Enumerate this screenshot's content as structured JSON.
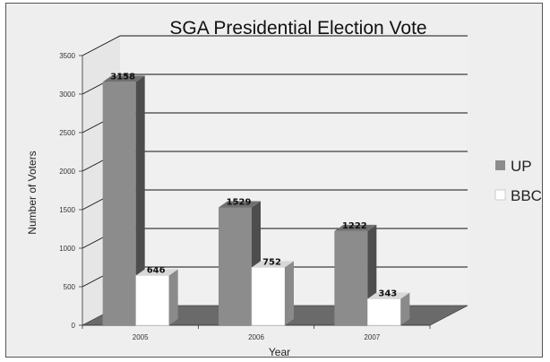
{
  "chart_data": {
    "type": "bar",
    "title": "SGA Presidential Election Vote",
    "xlabel": "Year",
    "ylabel": "Number of Voters",
    "categories": [
      "2005",
      "2006",
      "2007"
    ],
    "series": [
      {
        "name": "UP",
        "values": [
          3158,
          1529,
          1222
        ],
        "color": "#8c8c8c"
      },
      {
        "name": "BBC",
        "values": [
          646,
          752,
          343
        ],
        "color": "#ffffff"
      }
    ],
    "ylim": [
      0,
      3500
    ],
    "yticks": [
      "0",
      "500",
      "1000",
      "1500",
      "2000",
      "2500",
      "3000",
      "3500"
    ],
    "grid": true,
    "legend": "right",
    "style": "3d",
    "floor_color": "#6a6a6a"
  }
}
